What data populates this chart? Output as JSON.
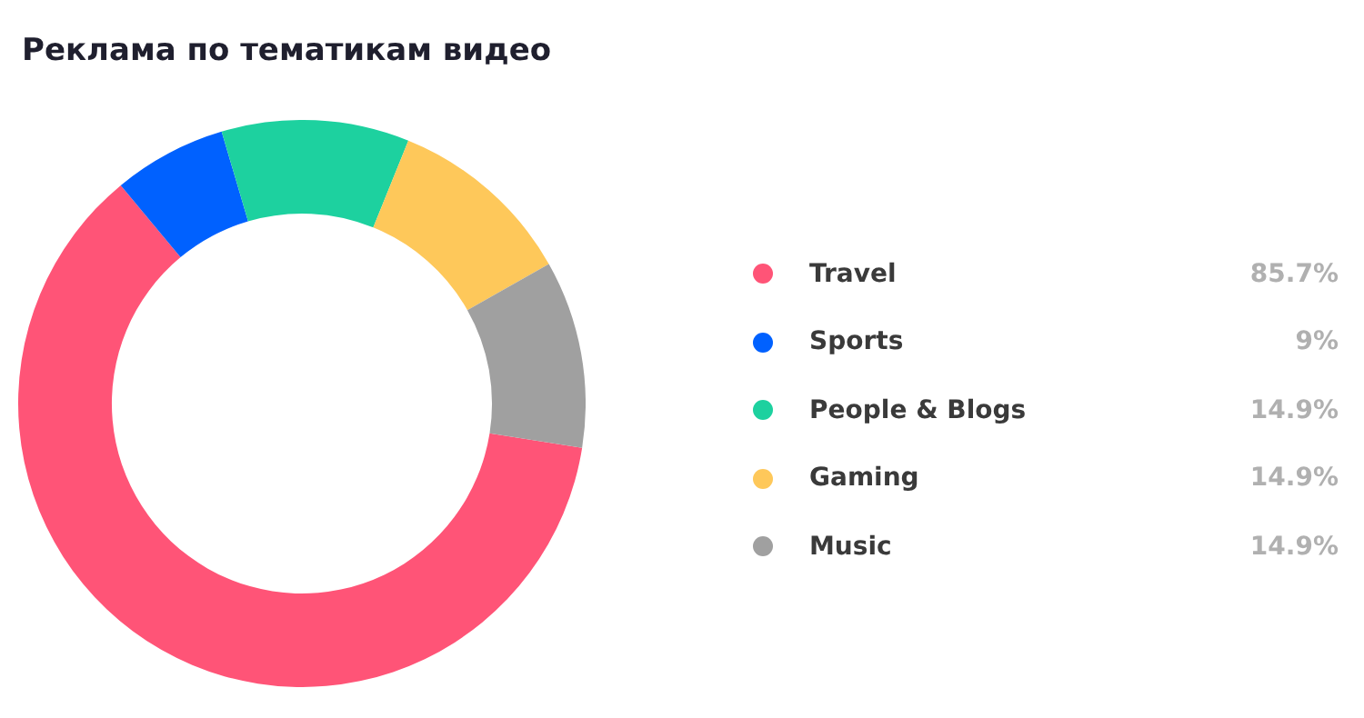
{
  "chart_data": {
    "type": "donut",
    "title": "Реклама по тематикам видео",
    "categories": [
      "Travel",
      "Sports",
      "People & Blogs",
      "Gaming",
      "Music"
    ],
    "values": [
      85.7,
      9,
      14.9,
      14.9,
      14.9
    ],
    "value_labels": [
      "85.7%",
      "9%",
      "14.9%",
      "14.9%",
      "14.9%"
    ],
    "colors": [
      "#ff5477",
      "#0061ff",
      "#1dd19f",
      "#fec85a",
      "#a0a0a0"
    ],
    "legend": "right"
  }
}
